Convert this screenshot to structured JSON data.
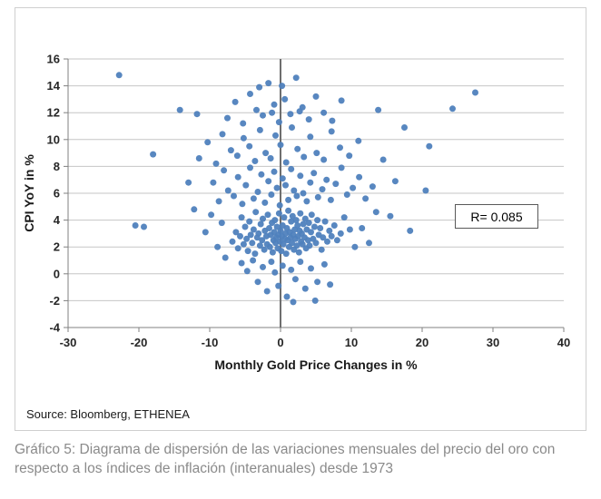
{
  "source": "Source: Bloomberg, ETHENEA",
  "caption": "Gráfico 5: Diagrama de dispersión de las variaciones mensuales del precio del oro con respecto a los índices de inflación (interanuales) desde 1973",
  "chart_data": {
    "type": "scatter",
    "title": "",
    "xlabel": "Monthly Gold Price Changes in %",
    "ylabel": "CPI YoY in %",
    "xlim": [
      -30,
      40
    ],
    "ylim": [
      -4,
      16
    ],
    "xticks": [
      -30,
      -20,
      -10,
      0,
      10,
      20,
      30,
      40
    ],
    "yticks": [
      -4,
      -2,
      0,
      2,
      4,
      6,
      8,
      10,
      12,
      14,
      16
    ],
    "grid": "horizontal",
    "legend": "none",
    "annotation": "R= 0.085",
    "point_color": "#4f81bd",
    "axis_color": "#808080",
    "grid_color": "#c6c6c6",
    "zero_line_color": "#6e6e6e",
    "points": [
      [
        -6.8,
        2.4
      ],
      [
        -6.3,
        3.1
      ],
      [
        -6.0,
        1.9
      ],
      [
        -5.7,
        2.8
      ],
      [
        -5.5,
        4.2
      ],
      [
        -5.2,
        2.2
      ],
      [
        -5.0,
        3.5
      ],
      [
        -4.8,
        2.6
      ],
      [
        -4.6,
        1.7
      ],
      [
        -4.4,
        3.9
      ],
      [
        -4.2,
        2.9
      ],
      [
        -4.0,
        2.3
      ],
      [
        -3.8,
        3.3
      ],
      [
        -3.6,
        1.5
      ],
      [
        -3.5,
        4.6
      ],
      [
        -3.3,
        2.7
      ],
      [
        -3.1,
        3.0
      ],
      [
        -2.9,
        2.1
      ],
      [
        -2.8,
        3.7
      ],
      [
        -2.6,
        2.5
      ],
      [
        -2.5,
        4.1
      ],
      [
        -2.3,
        1.8
      ],
      [
        -2.2,
        3.2
      ],
      [
        -2.0,
        2.8
      ],
      [
        -1.9,
        2.2
      ],
      [
        -1.8,
        4.4
      ],
      [
        -1.6,
        3.4
      ],
      [
        -1.5,
        2.0
      ],
      [
        -1.4,
        2.9
      ],
      [
        -1.2,
        3.8
      ],
      [
        -1.1,
        1.6
      ],
      [
        -1.0,
        2.5
      ],
      [
        -0.9,
        3.1
      ],
      [
        -0.8,
        4.0
      ],
      [
        -0.7,
        2.3
      ],
      [
        -0.6,
        2.7
      ],
      [
        -0.5,
        3.5
      ],
      [
        -0.4,
        1.9
      ],
      [
        -0.3,
        2.9
      ],
      [
        -0.2,
        4.5
      ],
      [
        -0.1,
        2.4
      ],
      [
        0.0,
        3.2
      ],
      [
        0.1,
        1.7
      ],
      [
        0.2,
        2.8
      ],
      [
        0.3,
        3.6
      ],
      [
        0.4,
        2.2
      ],
      [
        0.5,
        4.2
      ],
      [
        0.6,
        2.6
      ],
      [
        0.7,
        3.0
      ],
      [
        0.8,
        1.5
      ],
      [
        0.9,
        3.4
      ],
      [
        1.0,
        2.5
      ],
      [
        1.1,
        4.7
      ],
      [
        1.2,
        2.0
      ],
      [
        1.3,
        3.1
      ],
      [
        1.4,
        2.7
      ],
      [
        1.5,
        3.9
      ],
      [
        1.6,
        2.3
      ],
      [
        1.7,
        4.3
      ],
      [
        1.8,
        2.9
      ],
      [
        1.9,
        1.8
      ],
      [
        2.0,
        3.3
      ],
      [
        2.1,
        2.6
      ],
      [
        2.2,
        4.0
      ],
      [
        2.3,
        2.1
      ],
      [
        2.4,
        3.6
      ],
      [
        2.5,
        2.8
      ],
      [
        2.6,
        1.6
      ],
      [
        2.7,
        3.2
      ],
      [
        2.8,
        4.5
      ],
      [
        2.9,
        2.4
      ],
      [
        3.0,
        3.0
      ],
      [
        3.1,
        2.2
      ],
      [
        3.2,
        3.7
      ],
      [
        3.4,
        2.7
      ],
      [
        3.5,
        4.1
      ],
      [
        3.6,
        1.9
      ],
      [
        3.7,
        3.3
      ],
      [
        3.9,
        2.5
      ],
      [
        4.0,
        3.8
      ],
      [
        4.1,
        2.1
      ],
      [
        4.3,
        3.1
      ],
      [
        4.4,
        4.4
      ],
      [
        4.6,
        2.6
      ],
      [
        4.8,
        3.5
      ],
      [
        5.0,
        2.3
      ],
      [
        5.2,
        4.0
      ],
      [
        5.4,
        2.9
      ],
      [
        5.6,
        3.4
      ],
      [
        5.8,
        1.8
      ],
      [
        6.0,
        2.7
      ],
      [
        6.3,
        3.9
      ],
      [
        6.6,
        2.4
      ],
      [
        6.9,
        3.2
      ],
      [
        7.2,
        2.8
      ],
      [
        7.6,
        3.6
      ],
      [
        8.0,
        2.5
      ],
      [
        8.5,
        3.0
      ],
      [
        -9.5,
        6.8
      ],
      [
        -8.7,
        5.4
      ],
      [
        -8.0,
        7.7
      ],
      [
        -7.4,
        6.2
      ],
      [
        -6.6,
        5.8
      ],
      [
        -6.0,
        7.2
      ],
      [
        -5.4,
        5.2
      ],
      [
        -4.9,
        6.6
      ],
      [
        -4.3,
        7.9
      ],
      [
        -3.8,
        5.6
      ],
      [
        -3.2,
        6.1
      ],
      [
        -2.7,
        7.4
      ],
      [
        -2.2,
        5.3
      ],
      [
        -1.7,
        6.9
      ],
      [
        -1.3,
        5.9
      ],
      [
        -0.9,
        7.6
      ],
      [
        -0.5,
        6.4
      ],
      [
        -0.1,
        5.1
      ],
      [
        0.3,
        7.1
      ],
      [
        0.7,
        6.6
      ],
      [
        1.1,
        5.5
      ],
      [
        1.5,
        7.8
      ],
      [
        1.9,
        6.2
      ],
      [
        2.3,
        5.8
      ],
      [
        2.8,
        7.3
      ],
      [
        3.2,
        6.0
      ],
      [
        3.7,
        5.4
      ],
      [
        4.2,
        6.8
      ],
      [
        4.7,
        7.5
      ],
      [
        5.3,
        5.7
      ],
      [
        5.9,
        6.3
      ],
      [
        6.5,
        7.0
      ],
      [
        7.1,
        5.5
      ],
      [
        7.8,
        6.7
      ],
      [
        8.6,
        7.9
      ],
      [
        9.4,
        5.9
      ],
      [
        10.2,
        6.4
      ],
      [
        11.1,
        7.2
      ],
      [
        12.0,
        5.6
      ],
      [
        13.0,
        6.5
      ],
      [
        -11.5,
        8.6
      ],
      [
        -10.3,
        9.8
      ],
      [
        -9.1,
        8.2
      ],
      [
        -8.2,
        10.4
      ],
      [
        -7.0,
        9.2
      ],
      [
        -6.1,
        8.8
      ],
      [
        -5.2,
        10.1
      ],
      [
        -4.4,
        9.5
      ],
      [
        -3.6,
        8.4
      ],
      [
        -2.9,
        10.7
      ],
      [
        -2.1,
        9.0
      ],
      [
        -1.4,
        8.6
      ],
      [
        -0.7,
        10.3
      ],
      [
        0.0,
        9.6
      ],
      [
        0.8,
        8.3
      ],
      [
        1.6,
        10.9
      ],
      [
        2.4,
        9.3
      ],
      [
        3.3,
        8.7
      ],
      [
        4.2,
        10.2
      ],
      [
        5.1,
        9.0
      ],
      [
        6.1,
        8.5
      ],
      [
        7.2,
        10.6
      ],
      [
        8.4,
        9.4
      ],
      [
        9.7,
        8.8
      ],
      [
        11.0,
        9.9
      ],
      [
        -7.5,
        11.6
      ],
      [
        -6.4,
        12.8
      ],
      [
        -5.3,
        11.2
      ],
      [
        -4.3,
        13.4
      ],
      [
        -3.4,
        12.2
      ],
      [
        -2.5,
        11.8
      ],
      [
        -1.7,
        14.2
      ],
      [
        -0.9,
        12.6
      ],
      [
        -0.2,
        11.3
      ],
      [
        0.6,
        13.0
      ],
      [
        1.4,
        11.9
      ],
      [
        2.2,
        14.6
      ],
      [
        3.1,
        12.4
      ],
      [
        4.0,
        11.5
      ],
      [
        5.0,
        13.2
      ],
      [
        6.1,
        12.0
      ],
      [
        7.3,
        11.4
      ],
      [
        8.6,
        12.9
      ],
      [
        2.7,
        12.1
      ],
      [
        -1.2,
        12.0
      ],
      [
        0.2,
        14.0
      ],
      [
        -3.0,
        13.9
      ],
      [
        -5.5,
        0.8
      ],
      [
        -4.7,
        0.2
      ],
      [
        -3.9,
        1.0
      ],
      [
        -3.2,
        -0.6
      ],
      [
        -2.5,
        0.5
      ],
      [
        -1.9,
        -1.3
      ],
      [
        -1.3,
        0.9
      ],
      [
        -0.8,
        0.1
      ],
      [
        -0.3,
        -0.9
      ],
      [
        0.3,
        0.6
      ],
      [
        0.9,
        -1.7
      ],
      [
        1.5,
        0.3
      ],
      [
        2.1,
        -0.4
      ],
      [
        2.8,
        0.9
      ],
      [
        3.5,
        -1.1
      ],
      [
        4.3,
        0.4
      ],
      [
        5.2,
        -0.6
      ],
      [
        6.2,
        0.7
      ],
      [
        4.9,
        -2.0
      ],
      [
        1.8,
        -2.1
      ],
      [
        7.0,
        -0.8
      ],
      [
        -22.8,
        14.8
      ],
      [
        -20.5,
        3.6
      ],
      [
        -19.3,
        3.5
      ],
      [
        -18.0,
        8.9
      ],
      [
        -14.2,
        12.2
      ],
      [
        -13.0,
        6.8
      ],
      [
        -11.8,
        11.9
      ],
      [
        -12.2,
        4.8
      ],
      [
        -10.6,
        3.1
      ],
      [
        -9.8,
        4.4
      ],
      [
        -8.9,
        2.0
      ],
      [
        -8.3,
        3.8
      ],
      [
        -7.8,
        1.2
      ],
      [
        9.0,
        4.2
      ],
      [
        9.8,
        3.3
      ],
      [
        10.5,
        2.0
      ],
      [
        11.5,
        3.4
      ],
      [
        12.5,
        2.3
      ],
      [
        13.5,
        4.6
      ],
      [
        13.8,
        12.2
      ],
      [
        14.5,
        8.5
      ],
      [
        15.5,
        4.3
      ],
      [
        16.2,
        6.9
      ],
      [
        17.5,
        10.9
      ],
      [
        18.3,
        3.2
      ],
      [
        20.5,
        6.2
      ],
      [
        21.0,
        9.5
      ],
      [
        24.3,
        12.3
      ],
      [
        27.5,
        13.5
      ]
    ]
  }
}
